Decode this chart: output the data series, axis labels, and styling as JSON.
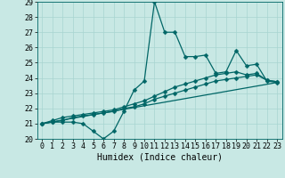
{
  "xlabel": "Humidex (Indice chaleur)",
  "xlim": [
    -0.5,
    23.5
  ],
  "ylim": [
    20,
    29
  ],
  "xticks": [
    0,
    1,
    2,
    3,
    4,
    5,
    6,
    7,
    8,
    9,
    10,
    11,
    12,
    13,
    14,
    15,
    16,
    17,
    18,
    19,
    20,
    21,
    22,
    23
  ],
  "yticks": [
    20,
    21,
    22,
    23,
    24,
    25,
    26,
    27,
    28,
    29
  ],
  "bg_color": "#c8e8e4",
  "grid_color": "#a8d4d0",
  "line_color": "#006666",
  "series1_x": [
    0,
    1,
    2,
    3,
    4,
    5,
    6,
    7,
    8,
    9,
    10,
    11,
    12,
    13,
    14,
    15,
    16,
    17,
    18,
    19,
    20,
    21,
    22,
    23
  ],
  "series1_y": [
    21.0,
    21.1,
    21.1,
    21.1,
    21.0,
    20.5,
    20.0,
    20.5,
    21.8,
    23.2,
    23.8,
    29.0,
    27.0,
    27.0,
    25.4,
    25.4,
    25.5,
    24.3,
    24.4,
    25.8,
    24.8,
    24.9,
    23.8,
    23.7
  ],
  "series2_x": [
    0,
    1,
    2,
    3,
    4,
    5,
    6,
    7,
    8,
    9,
    10,
    11,
    12,
    13,
    14,
    15,
    16,
    17,
    18,
    19,
    20,
    21,
    22,
    23
  ],
  "series2_y": [
    21.0,
    21.2,
    21.4,
    21.5,
    21.6,
    21.7,
    21.8,
    21.9,
    22.1,
    22.3,
    22.5,
    22.8,
    23.1,
    23.4,
    23.6,
    23.8,
    24.0,
    24.2,
    24.3,
    24.4,
    24.2,
    24.3,
    23.85,
    23.75
  ],
  "series3_x": [
    0,
    1,
    2,
    3,
    4,
    5,
    6,
    7,
    8,
    9,
    10,
    11,
    12,
    13,
    14,
    15,
    16,
    17,
    18,
    19,
    20,
    21,
    22,
    23
  ],
  "series3_y": [
    21.0,
    21.1,
    21.2,
    21.4,
    21.5,
    21.6,
    21.7,
    21.8,
    22.0,
    22.1,
    22.3,
    22.6,
    22.8,
    23.0,
    23.2,
    23.4,
    23.6,
    23.8,
    23.9,
    24.0,
    24.1,
    24.2,
    23.85,
    23.75
  ],
  "series4_x": [
    0,
    23
  ],
  "series4_y": [
    21.0,
    23.7
  ],
  "markersize": 2.5,
  "linewidth": 0.9,
  "xlabel_fontsize": 7,
  "tick_fontsize": 6
}
